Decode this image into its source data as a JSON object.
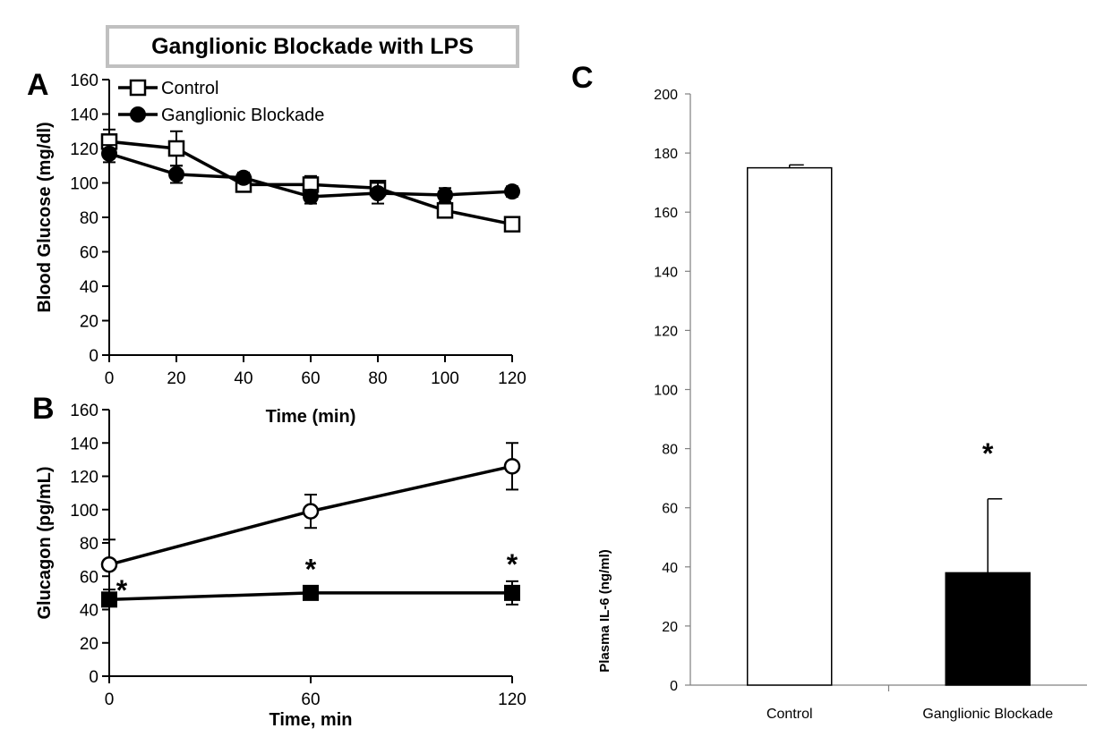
{
  "figure": {
    "title": "Ganglionic Blockade with LPS",
    "panel_labels": [
      "A",
      "B",
      "C"
    ],
    "colors": {
      "ink": "#000000",
      "title_border": "#c0c0c0",
      "open_fill": "#ffffff",
      "solid_fill": "#000000"
    }
  },
  "chart_data": [
    {
      "panel": "A",
      "type": "line",
      "xlabel": "Time (min)",
      "ylabel": "Blood Glucose (mg/dl)",
      "xlim": [
        0,
        120
      ],
      "ylim": [
        0,
        160
      ],
      "xticks": [
        0,
        20,
        40,
        60,
        80,
        100,
        120
      ],
      "yticks": [
        0,
        20,
        40,
        60,
        80,
        100,
        120,
        140,
        160
      ],
      "x": [
        0,
        20,
        40,
        60,
        80,
        100,
        120
      ],
      "legend_position": "top-left",
      "series": [
        {
          "name": "Control",
          "marker": "open-square",
          "values": [
            124,
            120,
            99,
            99,
            97,
            84,
            76
          ],
          "errors": [
            7,
            10,
            4,
            5,
            4,
            3,
            2
          ]
        },
        {
          "name": "Ganglionic Blockade",
          "marker": "filled-circle",
          "values": [
            117,
            105,
            103,
            92,
            94,
            93,
            95
          ],
          "errors": [
            5,
            5,
            3,
            4,
            6,
            4,
            3
          ]
        }
      ]
    },
    {
      "panel": "B",
      "type": "line",
      "xlabel": "Time, min",
      "ylabel": "Glucagon (pg/mL)",
      "xlim": [
        0,
        120
      ],
      "ylim": [
        0,
        160
      ],
      "xticks": [
        0,
        60,
        120
      ],
      "yticks": [
        0,
        20,
        40,
        60,
        80,
        100,
        120,
        140,
        160
      ],
      "x": [
        0,
        60,
        120
      ],
      "series": [
        {
          "marker": "open-circle",
          "values": [
            67,
            99,
            126
          ],
          "errors": [
            15,
            10,
            14
          ]
        },
        {
          "marker": "filled-square",
          "values": [
            46,
            50,
            50
          ],
          "errors": [
            4,
            4,
            7
          ]
        }
      ],
      "annotations": [
        {
          "x": 0,
          "text": "*"
        },
        {
          "x": 60,
          "text": "*"
        },
        {
          "x": 120,
          "text": "*"
        }
      ]
    },
    {
      "panel": "C",
      "type": "bar",
      "ylabel": "Plasma IL-6 (ng/ml)",
      "ylim": [
        0,
        200
      ],
      "yticks": [
        0,
        20,
        40,
        60,
        80,
        100,
        120,
        140,
        160,
        180,
        200
      ],
      "categories": [
        "Control",
        "Ganglionic Blockade"
      ],
      "values": [
        175,
        38
      ],
      "errors": [
        1,
        25
      ],
      "fills": [
        "#ffffff",
        "#000000"
      ],
      "annotations": [
        {
          "category": "Ganglionic Blockade",
          "text": "*"
        }
      ]
    }
  ]
}
